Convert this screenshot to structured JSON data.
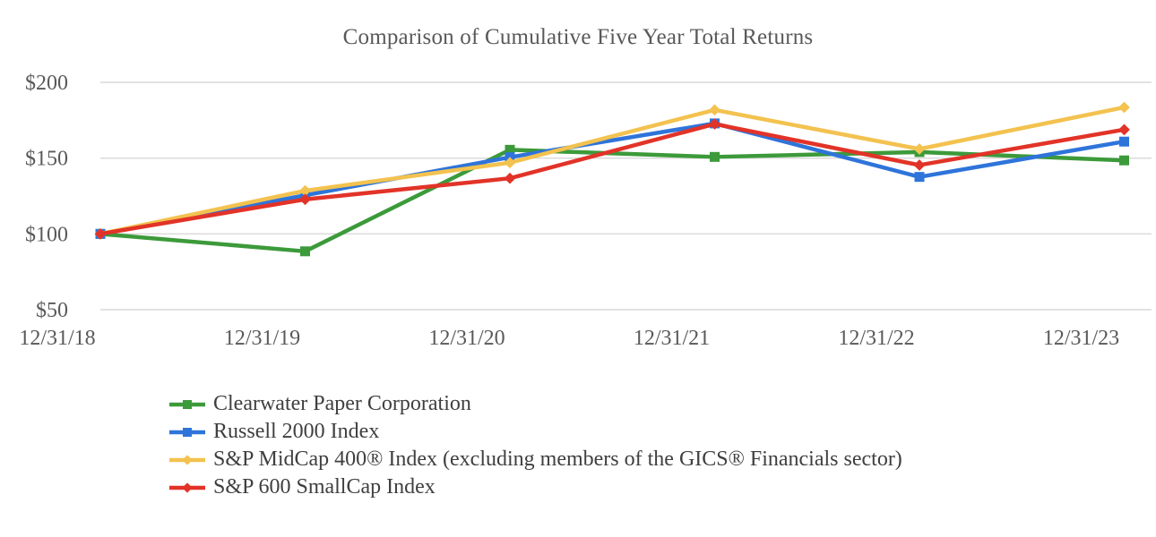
{
  "chart_data": {
    "type": "line",
    "title": "Comparison of Cumulative Five Year Total Returns",
    "categories": [
      "12/31/18",
      "12/31/19",
      "12/31/20",
      "12/31/21",
      "12/31/22",
      "12/31/23"
    ],
    "y_axis": {
      "tick_labels": [
        "$50",
        "$100",
        "$150",
        "$200"
      ],
      "tick_values": [
        50,
        100,
        150,
        200
      ],
      "ylim": [
        50,
        200
      ],
      "unit_prefix": "$"
    },
    "x_axis": {
      "label": "",
      "tick_labels": [
        "12/31/18",
        "12/31/19",
        "12/31/20",
        "12/31/21",
        "12/31/22",
        "12/31/23"
      ]
    },
    "grid": "horizontal-only",
    "legend_position": "bottom-left",
    "baseline_value": 100,
    "series": [
      {
        "name": "Clearwater Paper Corporation",
        "color": "#3C9A3A",
        "marker": "square",
        "values": [
          100,
          88.5,
          155.5,
          150.8,
          154.0,
          148.5
        ]
      },
      {
        "name": "Russell 2000 Index",
        "color": "#2E74DA",
        "marker": "square",
        "values": [
          100,
          125.5,
          150.6,
          172.9,
          137.6,
          160.9
        ]
      },
      {
        "name": "S&P MidCap 400® Index (excluding members of the GICS® Financials sector)",
        "color": "#F3C24F",
        "marker": "diamond",
        "values": [
          100,
          128.5,
          147.0,
          181.8,
          156.0,
          183.5
        ]
      },
      {
        "name": "S&P 600 SmallCap Index",
        "color": "#E23328",
        "marker": "diamond",
        "values": [
          100,
          122.8,
          136.7,
          172.5,
          145.4,
          168.8
        ]
      }
    ]
  },
  "colors": {
    "background": "#FFFFFF",
    "gridline": "#D9D9D9",
    "axis_text": "#595959",
    "title_text": "#595959",
    "legend_text": "#3F3F3F"
  }
}
